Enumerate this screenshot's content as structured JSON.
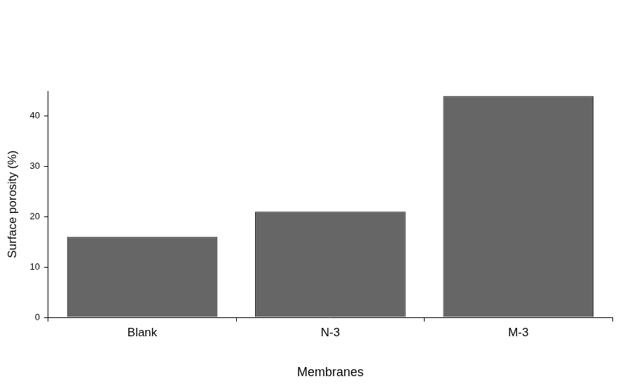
{
  "chart_data": {
    "type": "bar",
    "categories": [
      "Blank",
      "N-3",
      "M-3"
    ],
    "values": [
      16,
      21,
      44
    ],
    "color": "#666666",
    "x_label": "Membranes",
    "y_label": "Surface porosity (%)",
    "ylim": [
      0,
      45
    ],
    "yticks": [
      0,
      10,
      20,
      30,
      40
    ],
    "grid": false
  }
}
